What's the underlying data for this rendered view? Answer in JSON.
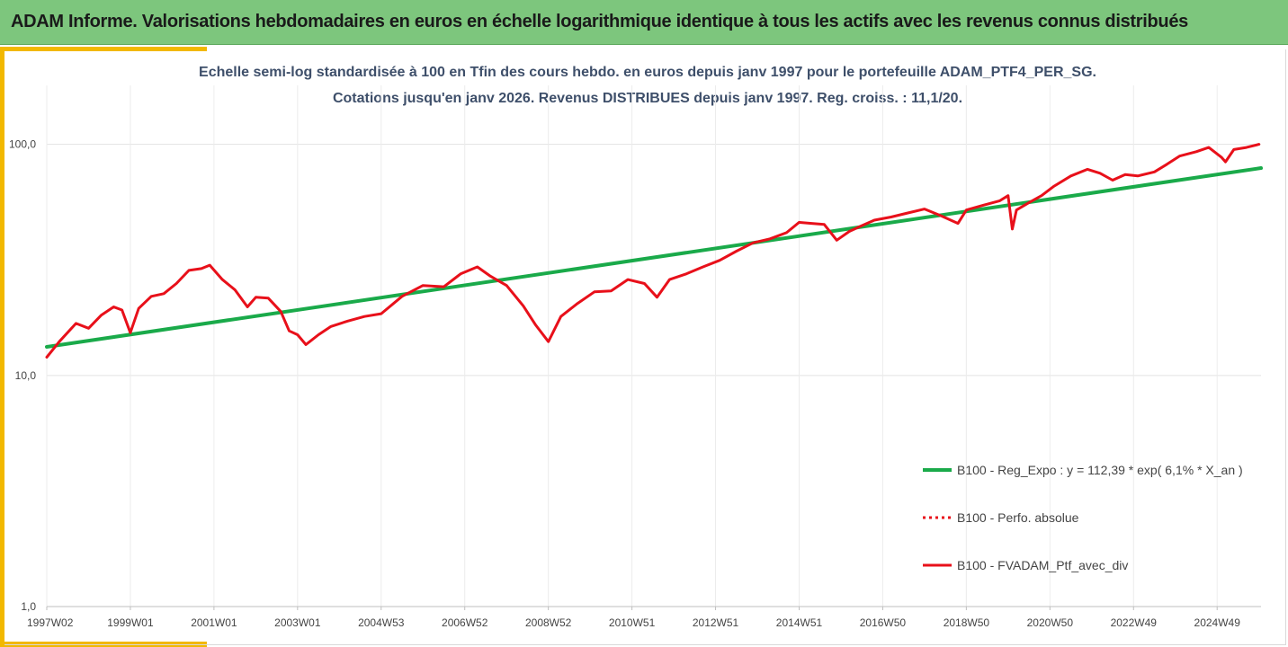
{
  "header": {
    "title": "ADAM Informe. Valorisations hebdomadaires en euros en échelle logarithmique identique à tous les actifs avec les revenus connus distribués"
  },
  "colors": {
    "banner": "#7dc67d",
    "accent_gold": "#f2b800",
    "regression_line": "#1aaa4a",
    "portfolio_line": "#e8101a",
    "subtitle_text": "#3e4f6a"
  },
  "chart_data": {
    "type": "line",
    "title": "Echelle semi-log standardisée à 100 en Tfin des cours hebdo. en euros depuis janv 1997 pour le portefeuille ADAM_PTF4_PER_SG.",
    "subtitle": "Cotations jusqu'en janv 2026. Revenus DISTRIBUES depuis janv 1997. Reg. croiss. : 11,1/20.",
    "yscale": "log",
    "ylim": [
      1,
      180
    ],
    "xlim": [
      1997.0,
      2026.05
    ],
    "grid": true,
    "y_ticks": [
      "1,0",
      "10,0",
      "100,0"
    ],
    "y_tick_values": [
      1,
      10,
      100
    ],
    "x_ticks": [
      "1997W02",
      "1999W01",
      "2001W01",
      "2003W01",
      "2004W53",
      "2006W52",
      "2008W52",
      "2010W51",
      "2012W51",
      "2014W51",
      "2016W50",
      "2018W50",
      "2020W50",
      "2022W49",
      "2024W49"
    ],
    "x_tick_values": [
      1997.0,
      1999.0,
      2001.0,
      2003.0,
      2005.0,
      2007.0,
      2009.0,
      2011.0,
      2013.0,
      2015.0,
      2017.0,
      2019.0,
      2021.0,
      2023.0,
      2025.0
    ],
    "legend_position": "bottom-right",
    "series": [
      {
        "name": "B100 - Reg_Expo : y = 112,39 * exp( 6,1% * X_an )",
        "style": "solid",
        "x": [
          1997.0,
          2026.05
        ],
        "values": [
          13.3,
          79.0
        ]
      },
      {
        "name": "B100 - Perfo. absolue",
        "style": "dotted",
        "x": [],
        "values": []
      },
      {
        "name": "B100 - FVADAM_Ptf_avec_div",
        "style": "solid",
        "x": [
          1997.0,
          1997.3,
          1997.7,
          1998.0,
          1998.3,
          1998.6,
          1998.8,
          1999.0,
          1999.2,
          1999.5,
          1999.8,
          2000.1,
          2000.4,
          2000.7,
          2000.9,
          2001.2,
          2001.5,
          2001.8,
          2002.0,
          2002.3,
          2002.6,
          2002.8,
          2003.0,
          2003.2,
          2003.5,
          2003.8,
          2004.2,
          2004.6,
          2005.0,
          2005.5,
          2006.0,
          2006.5,
          2006.9,
          2007.3,
          2007.6,
          2008.0,
          2008.4,
          2008.7,
          2009.0,
          2009.3,
          2009.7,
          2010.1,
          2010.5,
          2010.9,
          2011.3,
          2011.6,
          2011.9,
          2012.3,
          2012.7,
          2013.1,
          2013.5,
          2013.9,
          2014.3,
          2014.7,
          2015.0,
          2015.3,
          2015.6,
          2015.9,
          2016.2,
          2016.5,
          2016.8,
          2017.2,
          2017.6,
          2018.0,
          2018.4,
          2018.8,
          2019.0,
          2019.4,
          2019.8,
          2020.0,
          2020.1,
          2020.2,
          2020.5,
          2020.8,
          2021.1,
          2021.5,
          2021.9,
          2022.2,
          2022.5,
          2022.8,
          2023.1,
          2023.5,
          2023.8,
          2024.1,
          2024.5,
          2024.8,
          2025.1,
          2025.2,
          2025.4,
          2025.7,
          2026.0
        ],
        "values": [
          12.0,
          14.0,
          16.8,
          16.0,
          18.2,
          19.8,
          19.2,
          15.3,
          19.5,
          22.0,
          22.6,
          25.0,
          28.5,
          29.0,
          30.0,
          26.0,
          23.5,
          19.8,
          21.8,
          21.6,
          18.9,
          15.6,
          15.0,
          13.6,
          15.0,
          16.3,
          17.2,
          18.0,
          18.5,
          22.0,
          24.5,
          24.2,
          27.5,
          29.5,
          27.0,
          24.5,
          20.0,
          16.5,
          14.0,
          18.0,
          20.5,
          23.0,
          23.2,
          26.0,
          25.0,
          21.8,
          26.0,
          27.5,
          29.5,
          31.5,
          34.5,
          37.5,
          39.0,
          41.5,
          46.0,
          45.5,
          45.0,
          38.5,
          42.0,
          44.5,
          47.0,
          48.5,
          50.5,
          52.5,
          49.0,
          45.5,
          52.0,
          54.5,
          57.0,
          60.0,
          43.0,
          52.0,
          56.0,
          60.0,
          66.0,
          73.0,
          78.0,
          75.0,
          70.0,
          74.0,
          73.0,
          76.0,
          82.0,
          89.0,
          93.0,
          97.0,
          88.0,
          84.0,
          95.0,
          97.0,
          100.0
        ]
      }
    ]
  }
}
